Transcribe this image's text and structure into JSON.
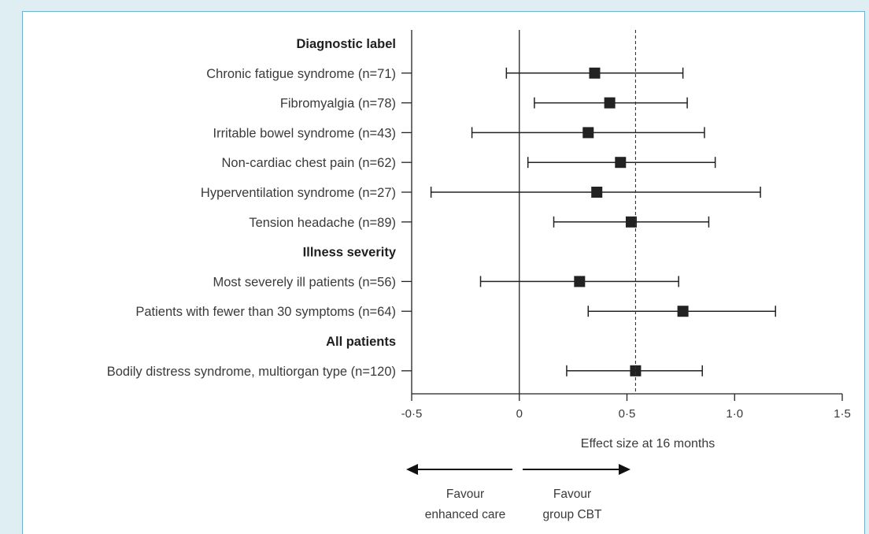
{
  "chart_data": {
    "type": "forest",
    "xlabel": "Effect size at 16 months",
    "xlim": [
      -0.5,
      1.5
    ],
    "xticks": [
      -0.5,
      0,
      0.5,
      1.0,
      1.5
    ],
    "xtick_labels": [
      "-0·5",
      "0",
      "0·5",
      "1·0",
      "1·5"
    ],
    "reference_lines": [
      {
        "x": 0,
        "style": "solid"
      },
      {
        "x": 0.54,
        "style": "dashed"
      }
    ],
    "rows": [
      {
        "kind": "header",
        "label": "Diagnostic label"
      },
      {
        "kind": "estimate",
        "label": "Chronic fatigue syndrome (n=71)",
        "estimate": 0.35,
        "ci_low": -0.06,
        "ci_high": 0.76
      },
      {
        "kind": "estimate",
        "label": "Fibromyalgia (n=78)",
        "estimate": 0.42,
        "ci_low": 0.07,
        "ci_high": 0.78
      },
      {
        "kind": "estimate",
        "label": "Irritable bowel syndrome (n=43)",
        "estimate": 0.32,
        "ci_low": -0.22,
        "ci_high": 0.86
      },
      {
        "kind": "estimate",
        "label": "Non-cardiac chest pain (n=62)",
        "estimate": 0.47,
        "ci_low": 0.04,
        "ci_high": 0.91
      },
      {
        "kind": "estimate",
        "label": "Hyperventilation syndrome (n=27)",
        "estimate": 0.36,
        "ci_low": -0.41,
        "ci_high": 1.12
      },
      {
        "kind": "estimate",
        "label": "Tension headache (n=89)",
        "estimate": 0.52,
        "ci_low": 0.16,
        "ci_high": 0.88
      },
      {
        "kind": "header",
        "label": "Illness severity"
      },
      {
        "kind": "estimate",
        "label": "Most severely ill patients (n=56)",
        "estimate": 0.28,
        "ci_low": -0.18,
        "ci_high": 0.74
      },
      {
        "kind": "estimate",
        "label": "Patients with fewer than 30 symptoms (n=64)",
        "estimate": 0.76,
        "ci_low": 0.32,
        "ci_high": 1.19
      },
      {
        "kind": "header",
        "label": "All patients"
      },
      {
        "kind": "estimate",
        "label": "Bodily distress syndrome, multiorgan type (n=120)",
        "estimate": 0.54,
        "ci_low": 0.22,
        "ci_high": 0.85
      }
    ],
    "direction_labels": {
      "left": [
        "Favour",
        "enhanced care"
      ],
      "right": [
        "Favour",
        "group CBT"
      ]
    },
    "colors": {
      "marker": "#222222",
      "lines": "#222222",
      "frame": "#6fb3c8",
      "background": "#dfeef3"
    }
  }
}
